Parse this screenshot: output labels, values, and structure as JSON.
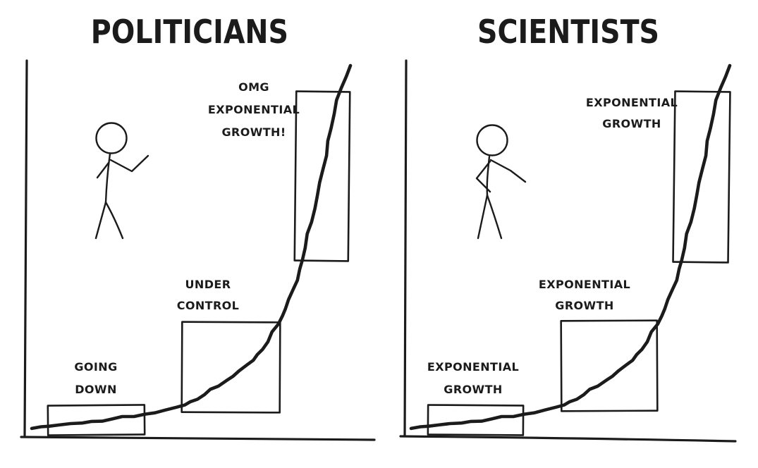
{
  "page": {
    "background_color": "#ffffff",
    "ink_color": "#1b1b1b",
    "style": "hand-drawn xkcd-style two-panel comic"
  },
  "panels": [
    {
      "title": "POLITICIANS",
      "figure_pose": "stick figure gesturing at curve",
      "boxes": [
        {
          "label_lines": [
            "GOING",
            "DOWN"
          ]
        },
        {
          "label_lines": [
            "UNDER",
            "CONTROL"
          ]
        },
        {
          "label_lines": [
            "OMG",
            "EXPONENTIAL",
            "GROWTH!"
          ]
        }
      ]
    },
    {
      "title": "SCIENTISTS",
      "figure_pose": "stick figure with hand on hip pointing at curve",
      "boxes": [
        {
          "label_lines": [
            "EXPONENTIAL",
            "GROWTH"
          ]
        },
        {
          "label_lines": [
            "EXPONENTIAL",
            "GROWTH"
          ]
        },
        {
          "label_lines": [
            "EXPONENTIAL",
            "GROWTH"
          ]
        }
      ]
    }
  ],
  "chart_data": [
    {
      "type": "line",
      "title": "POLITICIANS",
      "xlabel": "",
      "ylabel": "",
      "xlim": [
        0,
        1
      ],
      "ylim": [
        0,
        1
      ],
      "axes": "unlabeled hand-drawn axes, no ticks, no grid",
      "x": [
        0.0,
        0.055,
        0.122,
        0.188,
        0.254,
        0.321,
        0.387,
        0.454,
        0.498,
        0.542,
        0.586,
        0.631,
        0.675,
        0.708,
        0.741,
        0.774,
        0.796,
        0.819,
        0.841,
        0.858,
        0.878,
        0.896,
        0.914,
        0.929,
        0.949,
        0.971,
        1.0
      ],
      "y": [
        0.023,
        0.029,
        0.036,
        0.042,
        0.049,
        0.055,
        0.065,
        0.08,
        0.095,
        0.114,
        0.137,
        0.163,
        0.194,
        0.222,
        0.256,
        0.304,
        0.345,
        0.395,
        0.452,
        0.509,
        0.579,
        0.649,
        0.721,
        0.797,
        0.869,
        0.939,
        1.0
      ],
      "annotations": [
        {
          "text": "GOING DOWN",
          "x_range": [
            0.05,
            0.35
          ],
          "marker": "rectangle over early flat segment"
        },
        {
          "text": "UNDER CONTROL",
          "x_range": [
            0.47,
            0.78
          ],
          "marker": "rectangle over middle rising segment"
        },
        {
          "text": "OMG EXPONENTIAL GROWTH!",
          "x_range": [
            0.83,
            1.0
          ],
          "marker": "rectangle over steep late segment"
        }
      ]
    },
    {
      "type": "line",
      "title": "SCIENTISTS",
      "xlabel": "",
      "ylabel": "",
      "xlim": [
        0,
        1
      ],
      "ylim": [
        0,
        1
      ],
      "axes": "unlabeled hand-drawn axes, no ticks, no grid",
      "x": [
        0.0,
        0.055,
        0.122,
        0.188,
        0.254,
        0.321,
        0.387,
        0.454,
        0.498,
        0.542,
        0.586,
        0.631,
        0.675,
        0.708,
        0.741,
        0.774,
        0.796,
        0.819,
        0.841,
        0.858,
        0.878,
        0.896,
        0.914,
        0.929,
        0.949,
        0.971,
        1.0
      ],
      "y": [
        0.023,
        0.029,
        0.036,
        0.042,
        0.049,
        0.055,
        0.065,
        0.08,
        0.095,
        0.114,
        0.137,
        0.163,
        0.194,
        0.222,
        0.256,
        0.304,
        0.345,
        0.395,
        0.452,
        0.509,
        0.579,
        0.649,
        0.721,
        0.797,
        0.869,
        0.939,
        1.0
      ],
      "annotations": [
        {
          "text": "EXPONENTIAL GROWTH",
          "x_range": [
            0.05,
            0.35
          ],
          "marker": "rectangle over early flat segment"
        },
        {
          "text": "EXPONENTIAL GROWTH",
          "x_range": [
            0.47,
            0.78
          ],
          "marker": "rectangle over middle rising segment"
        },
        {
          "text": "EXPONENTIAL GROWTH",
          "x_range": [
            0.83,
            1.0
          ],
          "marker": "rectangle over steep late segment"
        }
      ]
    }
  ]
}
